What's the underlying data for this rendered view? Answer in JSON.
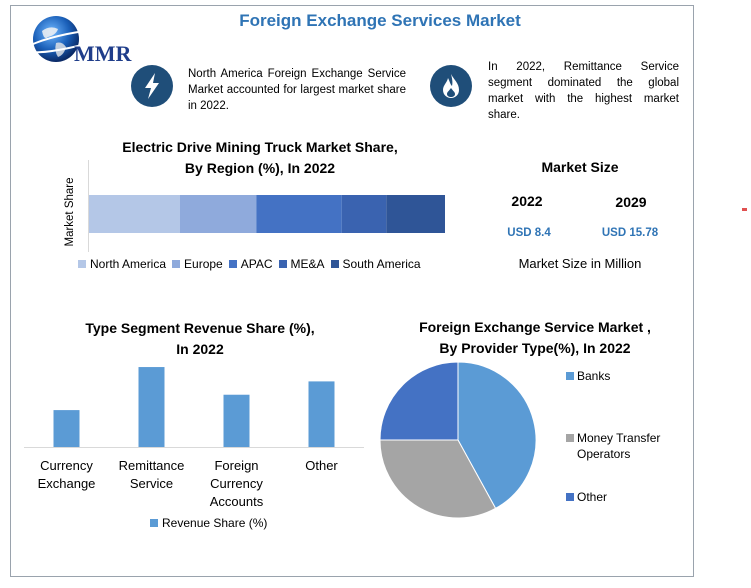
{
  "header": {
    "title": "Foreign Exchange Services Market",
    "logo_text": "MMR"
  },
  "notes": [
    {
      "icon": "lightning-icon",
      "text": "North America Foreign Exchange Service Market accounted for largest market share in 2022."
    },
    {
      "icon": "flame-icon",
      "text": "In 2022, Remittance Service segment dominated the global market with the highest market share."
    }
  ],
  "market_size": {
    "title": "Market Size",
    "years": [
      "2022",
      "2029"
    ],
    "values": [
      "USD 8.4",
      "USD 15.78"
    ],
    "unit_note": "Market Size in Million"
  },
  "colors": {
    "accent": "#2f74b5",
    "icon_bg": "#1f4e79",
    "regions": [
      "#b4c7e7",
      "#8faadc",
      "#4472c4",
      "#3a63b0",
      "#2f5597"
    ],
    "bar": "#5b9bd5",
    "pie": [
      "#5b9bd5",
      "#a5a5a5",
      "#4472c4"
    ]
  },
  "chart_data": [
    {
      "type": "bar",
      "stacked": true,
      "orientation": "horizontal",
      "title_lines": [
        "Electric Drive Mining Truck Market Share,",
        "By Region (%), In 2022"
      ],
      "ylabel": "Market Share",
      "series": [
        {
          "name": "North America",
          "values": [
            25.5
          ]
        },
        {
          "name": "Europe",
          "values": [
            21.5
          ]
        },
        {
          "name": "APAC",
          "values": [
            24
          ]
        },
        {
          "name": "ME&A",
          "values": [
            12.5
          ]
        },
        {
          "name": "South America",
          "values": [
            16.5
          ]
        }
      ],
      "legend": "bottom"
    },
    {
      "type": "bar",
      "title_lines": [
        "Type Segment Revenue Share (%),",
        "In 2022"
      ],
      "categories": [
        [
          "Currency",
          "Exchange"
        ],
        [
          "Remittance",
          "Service"
        ],
        [
          "Foreign",
          "Currency",
          "Accounts"
        ],
        [
          "Other"
        ]
      ],
      "series": [
        {
          "name": "Revenue Share (%)",
          "values": [
            18,
            39,
            25.5,
            32
          ]
        }
      ],
      "ylim": [
        0,
        40
      ],
      "legend": "bottom"
    },
    {
      "type": "pie",
      "title_lines": [
        "Foreign Exchange Service Market ,",
        "By Provider Type(%), In 2022"
      ],
      "labels": [
        "Banks",
        [
          "Money Transfer",
          "Operators"
        ],
        "Other"
      ],
      "values": [
        42,
        33,
        25
      ],
      "legend": "right"
    }
  ]
}
